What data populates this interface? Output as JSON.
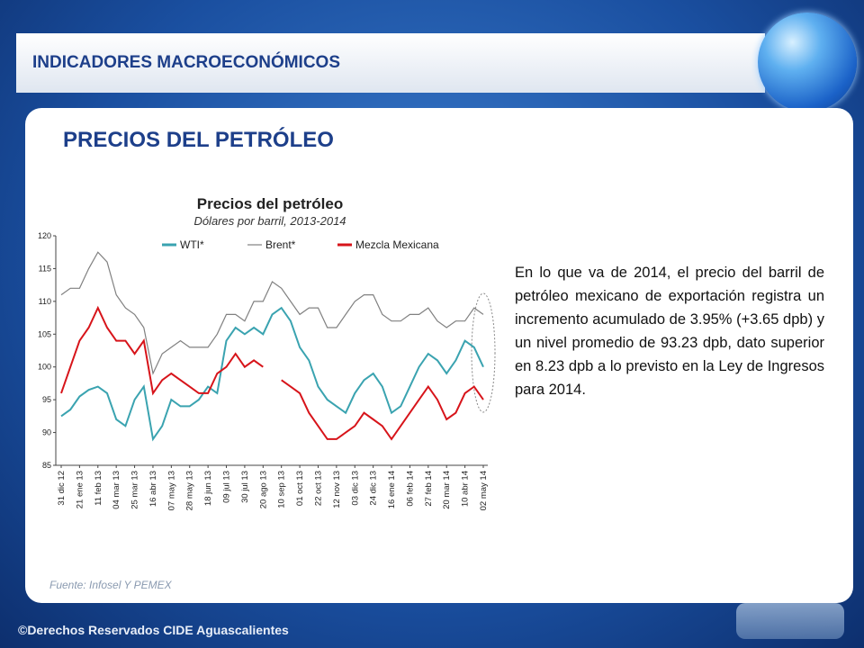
{
  "slide": {
    "header": "INDICADORES MACROECONÓMICOS",
    "heading": "PRECIOS DEL PETRÓLEO",
    "paragraph": "En lo que va de 2014, el precio del barril de petróleo mexicano de exportación registra un incremento acumulado de 3.95% (+3.65 dpb) y un nivel promedio de 93.23 dpb, dato superior en 8.23 dpb a lo previsto en la Ley de Ingresos para 2014.",
    "source": "Fuente: Infosel Y PEMEX",
    "footer": "©Derechos Reservados CIDE Aguascalientes"
  },
  "chart_data": {
    "type": "line",
    "title": "Precios del petróleo",
    "subtitle": "Dólares por barril, 2013-2014",
    "categories": [
      "31 dic 12",
      null,
      "21 ene 13",
      null,
      "11 feb 13",
      null,
      "04 mar 13",
      null,
      "25 mar 13",
      null,
      "16 abr 13",
      null,
      "07 may 13",
      null,
      "28 may 13",
      null,
      "18 jun 13",
      null,
      "09 jul 13",
      null,
      "30 jul 13",
      null,
      "20 ago 13",
      null,
      "10 sep 13",
      null,
      "01 oct 13",
      null,
      "22 oct 13",
      null,
      "12 nov 13",
      null,
      "03 dic 13",
      null,
      "24 dic 13",
      null,
      "16 ene 14",
      null,
      "06 feb 14",
      null,
      "27 feb 14",
      null,
      "20 mar 14",
      null,
      "10 abr 14",
      null,
      "02 may 14"
    ],
    "series": [
      {
        "name": "WTI*",
        "color": "#3aa3b0",
        "values": [
          92.5,
          93.5,
          95.5,
          96.5,
          97,
          96,
          92,
          91,
          95,
          97,
          89,
          91,
          95,
          94,
          94,
          95,
          97,
          96,
          104,
          106,
          105,
          106,
          105,
          108,
          109,
          107,
          103,
          101,
          97,
          95,
          94,
          93,
          96,
          98,
          99,
          97,
          93,
          94,
          97,
          100,
          102,
          101,
          99,
          101,
          104,
          103,
          100
        ]
      },
      {
        "name": "Brent*",
        "color": "#808080",
        "values": [
          111,
          112,
          112,
          115,
          117.5,
          116,
          111,
          109,
          108,
          106,
          99,
          102,
          103,
          104,
          103,
          103,
          103,
          105,
          108,
          108,
          107,
          110,
          110,
          113,
          112,
          110,
          108,
          109,
          109,
          106,
          106,
          108,
          110,
          111,
          111,
          108,
          107,
          107,
          108,
          108,
          109,
          107,
          106,
          107,
          107,
          109,
          108
        ]
      },
      {
        "name": "Mezcla Mexicana",
        "color": "#d7141a",
        "values": [
          96,
          100,
          104,
          106,
          109,
          106,
          104,
          104,
          102,
          104,
          96,
          98,
          99,
          98,
          97,
          96,
          96,
          99,
          100,
          102,
          100,
          101,
          100,
          null,
          98,
          97,
          96,
          93,
          91,
          89,
          89,
          90,
          91,
          93,
          92,
          91,
          89,
          91,
          93,
          95,
          97,
          95,
          92,
          93,
          96,
          97,
          95
        ]
      }
    ],
    "ylim": [
      85,
      120
    ],
    "yticks": [
      85,
      90,
      95,
      100,
      105,
      110,
      115,
      120
    ],
    "grid": false,
    "legend": "top"
  }
}
